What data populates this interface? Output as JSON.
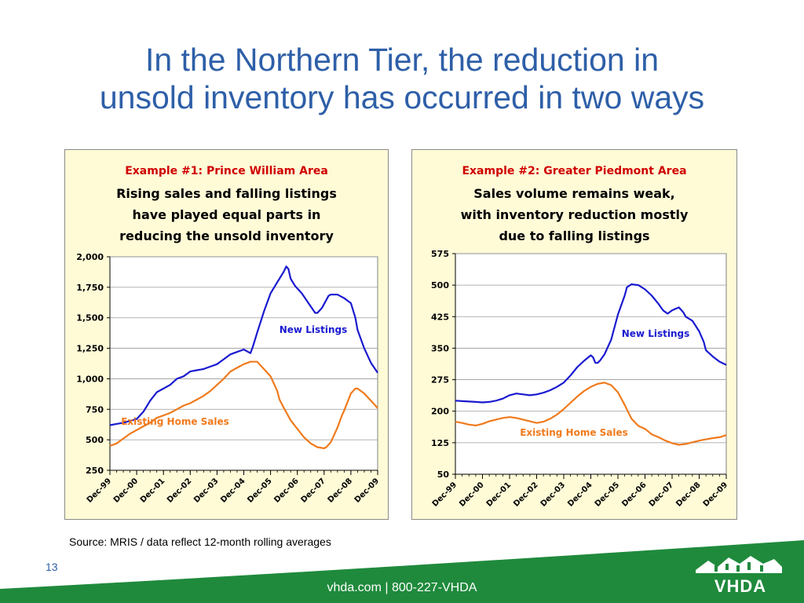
{
  "slide": {
    "title_line1": "In the Northern Tier, the reduction in",
    "title_line2": "unsold inventory has occurred in two ways",
    "source": "Source:  MRIS / data reflect 12-month rolling averages",
    "page_number": "13",
    "footer": "vhda.com | 800-227-VHDA",
    "logo": "VHDA",
    "colors": {
      "title": "#2e5fa8",
      "panel_bg": "#fffbd7",
      "new_listings": "#1a1ad0",
      "existing_sales": "#f07a1c",
      "example_heading": "#d00000",
      "footer_green": "#1f8a3c"
    }
  },
  "chart_data": [
    {
      "type": "line",
      "example": "Example #1:  Prince William Area",
      "subtitle_lines": [
        "Rising sales and falling listings",
        "have played equal parts in",
        "reducing the unsold inventory"
      ],
      "categories": [
        "Dec-99",
        "Dec-00",
        "Dec-01",
        "Dec-02",
        "Dec-03",
        "Dec-04",
        "Dec-05",
        "Dec-06",
        "Dec-07",
        "Dec-08",
        "Dec-09"
      ],
      "x": [
        0,
        12,
        24,
        36,
        48,
        60,
        72,
        84,
        96,
        108,
        120
      ],
      "xlim": [
        0,
        120
      ],
      "ylim": [
        250,
        2000
      ],
      "yticks": [
        250,
        500,
        750,
        1000,
        1250,
        1500,
        1750,
        2000
      ],
      "ytick_labels": [
        "250",
        "500",
        "750",
        "1,000",
        "1,250",
        "1,500",
        "1,750",
        "2,000"
      ],
      "grid": true,
      "series": [
        {
          "name": "New Listings",
          "color": "#1a1ad0",
          "x": [
            0,
            3,
            6,
            9,
            12,
            15,
            18,
            21,
            24,
            27,
            30,
            33,
            36,
            39,
            42,
            45,
            48,
            51,
            54,
            57,
            60,
            63,
            64,
            66,
            69,
            72,
            75,
            78,
            79,
            80,
            81,
            83,
            86,
            89,
            92,
            93,
            95,
            98,
            99,
            102,
            105,
            108,
            110,
            111,
            114,
            117,
            120
          ],
          "y": [
            620,
            630,
            640,
            655,
            670,
            730,
            820,
            890,
            920,
            950,
            1000,
            1020,
            1060,
            1070,
            1080,
            1100,
            1120,
            1160,
            1200,
            1220,
            1240,
            1210,
            1260,
            1380,
            1550,
            1700,
            1790,
            1880,
            1920,
            1900,
            1820,
            1760,
            1700,
            1620,
            1540,
            1540,
            1580,
            1680,
            1690,
            1690,
            1660,
            1620,
            1500,
            1400,
            1250,
            1130,
            1050
          ]
        },
        {
          "name": "Existing Home Sales",
          "color": "#f07a1c",
          "x": [
            0,
            3,
            6,
            9,
            12,
            15,
            18,
            21,
            24,
            27,
            30,
            33,
            36,
            39,
            42,
            45,
            48,
            51,
            54,
            57,
            60,
            63,
            66,
            67,
            69,
            72,
            75,
            76,
            78,
            81,
            84,
            87,
            90,
            93,
            96,
            97,
            99,
            102,
            104,
            105,
            108,
            110,
            111,
            114,
            117,
            120
          ],
          "y": [
            450,
            470,
            510,
            550,
            580,
            610,
            640,
            680,
            700,
            720,
            750,
            780,
            800,
            830,
            860,
            900,
            950,
            1000,
            1060,
            1090,
            1120,
            1140,
            1140,
            1120,
            1080,
            1020,
            900,
            830,
            760,
            660,
            590,
            520,
            470,
            440,
            430,
            440,
            480,
            600,
            700,
            740,
            880,
            920,
            920,
            880,
            820,
            760
          ]
        }
      ]
    },
    {
      "type": "line",
      "example": "Example #2:  Greater Piedmont Area",
      "subtitle_lines": [
        "Sales volume remains weak,",
        "with inventory reduction mostly",
        "due to falling listings"
      ],
      "categories": [
        "Dec-99",
        "Dec-00",
        "Dec-01",
        "Dec-02",
        "Dec-03",
        "Dec-04",
        "Dec-05",
        "Dec-06",
        "Dec-07",
        "Dec-08",
        "Dec-09"
      ],
      "x": [
        0,
        12,
        24,
        36,
        48,
        60,
        72,
        84,
        96,
        108,
        120
      ],
      "xlim": [
        0,
        120
      ],
      "ylim": [
        50,
        575
      ],
      "yticks": [
        50,
        125,
        200,
        275,
        350,
        425,
        500,
        575
      ],
      "ytick_labels": [
        "50",
        "125",
        "200",
        "275",
        "350",
        "425",
        "500",
        "575"
      ],
      "grid": true,
      "series": [
        {
          "name": "New Listings",
          "color": "#1a1ad0",
          "x": [
            0,
            3,
            6,
            9,
            12,
            15,
            18,
            21,
            24,
            27,
            30,
            33,
            36,
            39,
            42,
            45,
            48,
            51,
            54,
            57,
            60,
            61,
            62,
            63,
            64,
            66,
            69,
            72,
            75,
            76,
            78,
            81,
            84,
            87,
            90,
            92,
            94,
            96,
            99,
            101,
            102,
            105,
            108,
            110,
            111,
            114,
            117,
            120
          ],
          "y": [
            225,
            224,
            223,
            222,
            221,
            222,
            225,
            230,
            238,
            242,
            240,
            238,
            240,
            244,
            250,
            258,
            268,
            285,
            305,
            320,
            333,
            328,
            315,
            315,
            320,
            335,
            370,
            430,
            475,
            495,
            502,
            500,
            490,
            475,
            455,
            440,
            432,
            440,
            447,
            435,
            425,
            415,
            390,
            365,
            345,
            330,
            318,
            310
          ]
        },
        {
          "name": "Existing Home Sales",
          "color": "#f07a1c",
          "x": [
            0,
            3,
            6,
            9,
            12,
            15,
            18,
            21,
            24,
            27,
            30,
            33,
            36,
            39,
            42,
            45,
            48,
            51,
            54,
            57,
            60,
            63,
            66,
            69,
            72,
            75,
            78,
            81,
            84,
            87,
            90,
            93,
            96,
            99,
            102,
            105,
            108,
            111,
            114,
            117,
            120
          ],
          "y": [
            175,
            172,
            168,
            166,
            170,
            176,
            180,
            184,
            186,
            184,
            180,
            176,
            172,
            175,
            182,
            192,
            205,
            220,
            235,
            248,
            258,
            265,
            268,
            262,
            245,
            215,
            182,
            165,
            158,
            145,
            138,
            130,
            124,
            120,
            122,
            126,
            130,
            133,
            136,
            138,
            143
          ]
        }
      ]
    }
  ]
}
